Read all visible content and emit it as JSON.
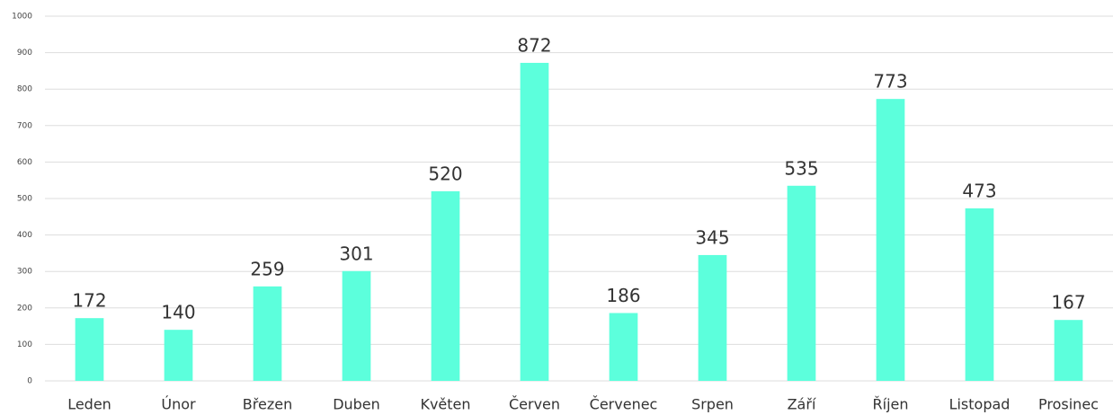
{
  "chart_data": {
    "type": "bar",
    "categories": [
      "Leden",
      "Únor",
      "Březen",
      "Duben",
      "Květen",
      "Červen",
      "Červenec",
      "Srpen",
      "Září",
      "Říjen",
      "Listopad",
      "Prosinec"
    ],
    "values": [
      172,
      140,
      259,
      301,
      520,
      872,
      186,
      345,
      535,
      773,
      473,
      167
    ],
    "color": "#5cffdc",
    "ylim": [
      0,
      1000
    ],
    "yticks": [
      0,
      100,
      200,
      300,
      400,
      500,
      600,
      700,
      800,
      900,
      1000
    ],
    "grid": true
  }
}
